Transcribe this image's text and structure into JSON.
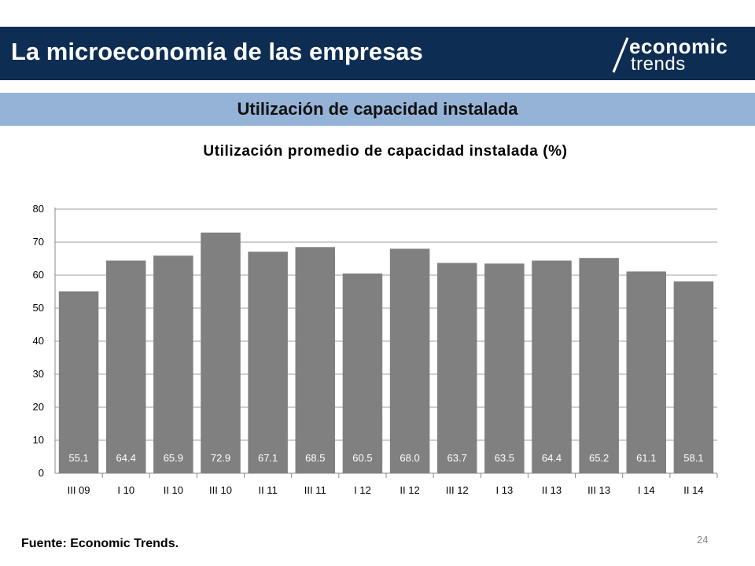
{
  "header": {
    "title": "La microeconomía de las empresas",
    "logo_line1": "economic",
    "logo_line2": "trends"
  },
  "subtitle": "Utilización de capacidad instalada",
  "colors": {
    "header_bg": "#0d2d52",
    "subtitle_bg": "#95b3d7",
    "bar": "#808080",
    "grid": "#bfbfbf",
    "label_text": "#ffffff"
  },
  "chart_data": {
    "type": "bar",
    "title": "Utilización promedio de capacidad instalada (%)",
    "xlabel": "",
    "ylabel": "",
    "ylim": [
      0,
      80
    ],
    "yticks": [
      0,
      10,
      20,
      30,
      40,
      50,
      60,
      70,
      80
    ],
    "grid": true,
    "categories": [
      "III 09",
      "I 10",
      "II 10",
      "III 10",
      "II 11",
      "III 11",
      "I 12",
      "II 12",
      "III 12",
      "I 13",
      "II 13",
      "III 13",
      "I 14",
      "II 14"
    ],
    "values": [
      55.1,
      64.4,
      65.9,
      72.9,
      67.1,
      68.5,
      60.5,
      68.0,
      63.7,
      63.5,
      64.4,
      65.2,
      61.1,
      58.1
    ],
    "value_labels": [
      "55.1",
      "64.4",
      "65.9",
      "72.9",
      "67.1",
      "68.5",
      "60.5",
      "68.0",
      "63.7",
      "63.5",
      "64.4",
      "65.2",
      "61.1",
      "58.1"
    ]
  },
  "footer": {
    "source": "Fuente: Economic Trends.",
    "page_number": "24"
  }
}
